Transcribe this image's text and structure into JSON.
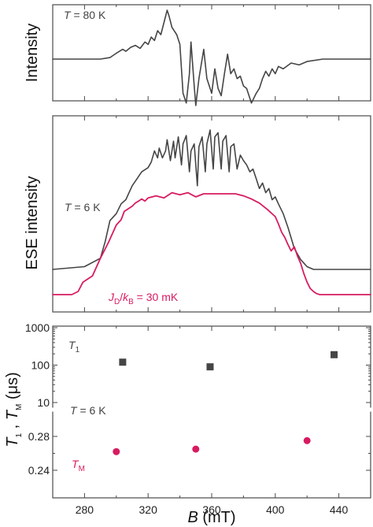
{
  "colors": {
    "black_trace": "#454545",
    "red_trace": "#d81b60",
    "t1_marker": "#454545",
    "tm_marker": "#d81b60",
    "frame": "#4a4a4a"
  },
  "labels": {
    "panel_a_ylabel": "Intensity",
    "panel_b_ylabel": "ESE intensity",
    "panel_c_ylabel": "T1 ,  TM (μs)",
    "xlabel": "B (mT)",
    "temp_80": "T = 80 K",
    "temp_6_b": "T = 6 K",
    "temp_6_c": "T = 6 K",
    "jd_label": "JD/kB = 30 mK",
    "t1_label": "T1",
    "tm_label": "TM"
  },
  "chart_data": [
    {
      "type": "line",
      "panel": "a",
      "ylabel": "Intensity",
      "annotation": "T = 80 K",
      "xlim": [
        260,
        460
      ],
      "x": [
        260,
        290,
        296,
        300,
        304,
        306,
        309,
        312,
        315,
        318,
        320,
        322,
        324,
        326,
        328,
        330,
        332,
        333,
        335,
        338,
        340,
        342,
        344,
        346,
        347,
        349,
        350,
        352,
        355,
        357,
        360,
        362,
        364,
        366,
        368,
        370,
        372,
        374,
        376,
        378,
        380,
        382,
        385,
        388,
        390,
        392,
        394,
        396,
        398,
        400,
        402,
        405,
        410,
        415,
        420,
        430,
        460
      ],
      "values": [
        0,
        0,
        0.03,
        0.12,
        0.2,
        0.16,
        0.24,
        0.28,
        0.22,
        0.35,
        0.3,
        0.45,
        0.38,
        0.58,
        0.5,
        0.75,
        1.0,
        0.9,
        0.65,
        0.5,
        0.3,
        -0.7,
        -0.9,
        -0.3,
        0.35,
        -0.55,
        -0.95,
        -0.4,
        0.2,
        -0.4,
        -0.7,
        -0.2,
        -0.6,
        -0.75,
        -0.3,
        0.1,
        -0.3,
        -0.2,
        -0.4,
        -0.35,
        -0.55,
        -0.6,
        -0.9,
        -0.7,
        -0.6,
        -0.4,
        -0.25,
        -0.35,
        -0.2,
        -0.3,
        -0.15,
        -0.2,
        -0.08,
        -0.12,
        -0.05,
        0,
        0
      ]
    },
    {
      "type": "line",
      "panel": "b",
      "ylabel": "ESE intensity",
      "xlim": [
        260,
        460
      ],
      "annotations": [
        "T = 6 K",
        "JD/kB = 30 mK"
      ],
      "series": [
        {
          "color": "#454545",
          "x": [
            260,
            280,
            290,
            293,
            296,
            300,
            303,
            306,
            310,
            313,
            316,
            320,
            322,
            324,
            326,
            327,
            329,
            331,
            332,
            334,
            336,
            337,
            339,
            341,
            342,
            344,
            346,
            347,
            349,
            351,
            352,
            354,
            356,
            357,
            359,
            361,
            362,
            364,
            366,
            367,
            369,
            371,
            372,
            374,
            376,
            378,
            380,
            382,
            384,
            386,
            388,
            390,
            392,
            394,
            396,
            398,
            400,
            402,
            405,
            408,
            412,
            416,
            420,
            424,
            460
          ],
          "values": [
            0,
            0.02,
            0.08,
            0.2,
            0.35,
            0.4,
            0.47,
            0.5,
            0.6,
            0.65,
            0.7,
            0.73,
            0.77,
            0.85,
            0.8,
            0.87,
            0.8,
            0.85,
            0.93,
            0.78,
            0.92,
            0.8,
            0.95,
            0.75,
            0.9,
            0.96,
            0.7,
            0.85,
            0.9,
            0.6,
            0.88,
            0.95,
            0.7,
            0.9,
            1.0,
            0.72,
            0.95,
            0.98,
            0.72,
            0.92,
            0.96,
            0.7,
            0.88,
            0.9,
            0.72,
            0.82,
            0.78,
            0.75,
            0.7,
            0.72,
            0.65,
            0.58,
            0.62,
            0.55,
            0.58,
            0.5,
            0.52,
            0.47,
            0.4,
            0.3,
            0.15,
            0.07,
            0.02,
            0,
            0
          ]
        },
        {
          "color": "#d81b60",
          "x": [
            260,
            272,
            276,
            279,
            282,
            285,
            290,
            295,
            300,
            303,
            305,
            308,
            310,
            312,
            314,
            316,
            318,
            320,
            325,
            330,
            335,
            340,
            345,
            350,
            355,
            360,
            365,
            370,
            375,
            380,
            385,
            390,
            395,
            400,
            402,
            404,
            406,
            408,
            410,
            412,
            414,
            416,
            418,
            420,
            422,
            424,
            426,
            428,
            460
          ],
          "values": [
            0,
            0,
            0.03,
            0.12,
            0.15,
            0.18,
            0.35,
            0.5,
            0.67,
            0.72,
            0.8,
            0.83,
            0.85,
            0.88,
            0.9,
            0.92,
            0.9,
            0.93,
            0.95,
            0.93,
            0.98,
            0.96,
            0.98,
            0.94,
            0.97,
            0.97,
            0.97,
            0.97,
            0.97,
            0.95,
            0.92,
            0.88,
            0.82,
            0.75,
            0.68,
            0.6,
            0.55,
            0.48,
            0.42,
            0.46,
            0.37,
            0.3,
            0.2,
            0.12,
            0.06,
            0.03,
            0.01,
            0,
            0
          ]
        }
      ]
    },
    {
      "type": "scatter",
      "panel": "c",
      "xlabel": "B (mT)",
      "ylabel": "T1 ,  TM (μs)",
      "xlim": [
        260,
        460
      ],
      "xticks": [
        280,
        320,
        360,
        400,
        440
      ],
      "annotation": "T = 6 K",
      "upper": {
        "scale": "log",
        "ylim": [
          10,
          1000
        ],
        "yticks": [
          10,
          100,
          1000
        ],
        "series": [
          {
            "name": "T1",
            "color": "#454545",
            "marker": "square",
            "x": [
              304,
              359,
              437
            ],
            "y": [
              120,
              90,
              190
            ]
          }
        ]
      },
      "lower": {
        "scale": "linear",
        "ylim": [
          0.225,
          0.303
        ],
        "yticks": [
          0.24,
          0.28
        ],
        "series": [
          {
            "name": "TM",
            "color": "#d81b60",
            "marker": "circle",
            "x": [
              300,
              350,
              420
            ],
            "y": [
              0.262,
              0.265,
              0.275
            ]
          }
        ]
      }
    }
  ],
  "tick_labels": {
    "x": [
      "280",
      "320",
      "360",
      "400",
      "440"
    ],
    "upper_y": [
      "1000",
      "100",
      "10"
    ],
    "lower_y": [
      "0.28",
      "0.24"
    ]
  }
}
